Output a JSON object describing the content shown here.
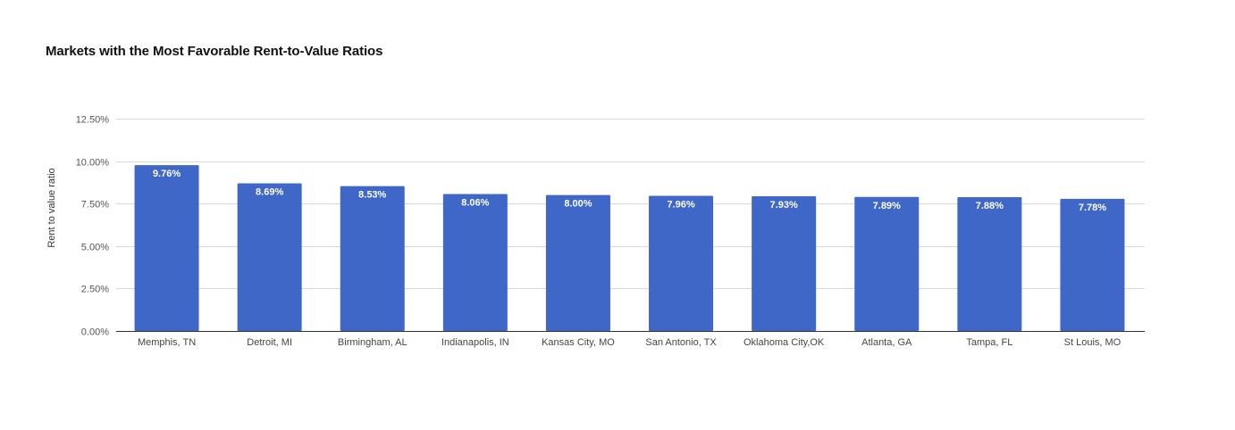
{
  "chart_data": {
    "type": "bar",
    "title": "Markets with the Most Favorable Rent-to-Value Ratios",
    "xlabel": "",
    "ylabel": "Rent to value ratio",
    "categories": [
      "Memphis, TN",
      "Detroit, MI",
      "Birmingham, AL",
      "Indianapolis, IN",
      "Kansas City, MO",
      "San Antonio, TX",
      "Oklahoma City,OK",
      "Atlanta, GA",
      "Tampa, FL",
      "St Louis, MO"
    ],
    "values": [
      9.76,
      8.69,
      8.53,
      8.06,
      8.0,
      7.96,
      7.93,
      7.89,
      7.88,
      7.78
    ],
    "data_labels": [
      "9.76%",
      "8.69%",
      "8.53%",
      "8.06%",
      "8.00%",
      "7.96%",
      "7.93%",
      "7.89%",
      "7.88%",
      "7.78%"
    ],
    "yticks": [
      0,
      2.5,
      5,
      7.5,
      10,
      12.5
    ],
    "ytick_labels": [
      "0.00%",
      "2.50%",
      "5.00%",
      "7.50%",
      "10.00%",
      "12.50%"
    ],
    "ylim": [
      0,
      12.5
    ],
    "grid": true,
    "legend": "none",
    "colors": {
      "bar": "#3f67c8",
      "grid": "#d9d9d9",
      "baseline": "#333333"
    }
  }
}
